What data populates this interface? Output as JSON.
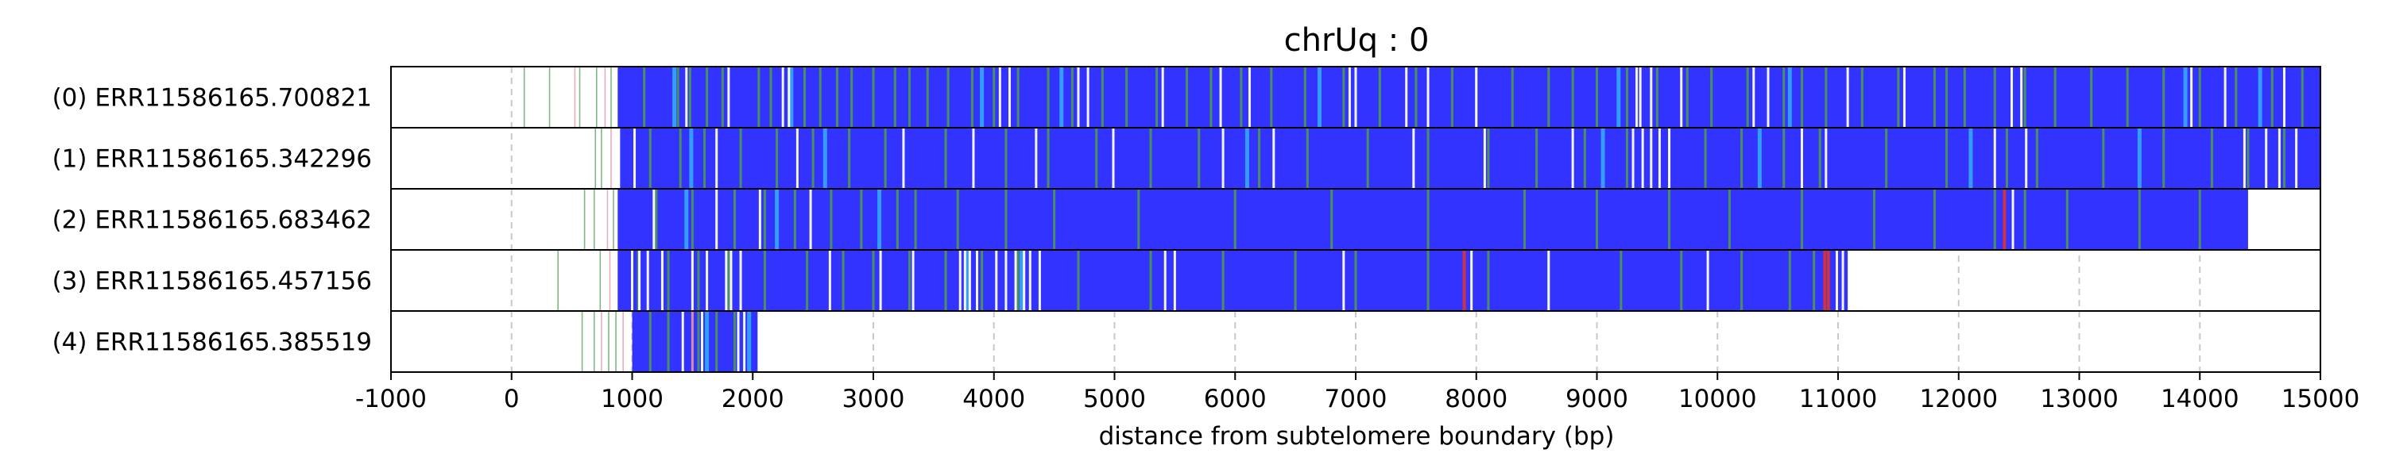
{
  "chart_data": {
    "type": "heatmap",
    "title": "chrUq : 0",
    "xlabel": "distance from subtelomere boundary (bp)",
    "ylabel": "",
    "xlim": [
      -1000,
      15000
    ],
    "xticks": [
      -1000,
      0,
      1000,
      2000,
      3000,
      4000,
      5000,
      6000,
      7000,
      8000,
      9000,
      10000,
      11000,
      12000,
      13000,
      14000,
      15000
    ],
    "xtick_labels": [
      "-1000",
      "0",
      "1000",
      "2000",
      "3000",
      "4000",
      "5000",
      "6000",
      "7000",
      "8000",
      "9000",
      "10000",
      "11000",
      "12000",
      "13000",
      "14000",
      "15000"
    ],
    "grid": "vertical dashed",
    "colors": {
      "repeat": "#3333ff",
      "variant_green": "#4c9a4c",
      "variant_cyan": "#33aaff",
      "variant_red": "#cc3344",
      "variant_pink": "#e08aa0",
      "gap": "#ffffff"
    },
    "rows": [
      {
        "label": "(0) ERR11586165.700821",
        "start": 880,
        "end": 15000,
        "pre_marks": [
          100,
          310,
          520,
          560,
          700,
          770,
          820
        ],
        "green": [
          1100,
          1380,
          1480,
          1620,
          1750,
          2050,
          2150,
          2300,
          2430,
          2560,
          2700,
          2820,
          3000,
          3180,
          3300,
          3450,
          3620,
          3820,
          4000,
          4200,
          4450,
          4650,
          4900,
          5100,
          5350,
          5600,
          5800,
          6050,
          6300,
          6580,
          6900,
          7200,
          7500,
          7800,
          8000,
          8300,
          8600,
          8800,
          9000,
          9250,
          9500,
          9750,
          9950,
          10250,
          10550,
          10700,
          10900,
          11200,
          11500,
          11800,
          11900,
          12050,
          12300,
          12550,
          12800,
          13100,
          13400,
          13700,
          14000,
          14300,
          14600,
          14850
        ],
        "white": [
          1450,
          1800,
          2250,
          2300,
          4050,
          4130,
          4700,
          4780,
          5400,
          5880,
          6120,
          6950,
          7000,
          7420,
          7600,
          8000,
          9330,
          9360,
          9450,
          9700,
          10300,
          10420,
          11080,
          11550,
          12440,
          12520,
          13930,
          14210,
          14700
        ],
        "cyan": [
          1350,
          2320,
          3900,
          4560,
          6700,
          9180,
          10600,
          13880,
          14500
        ]
      },
      {
        "label": "(1) ERR11586165.342296",
        "start": 900,
        "end": 15000,
        "pre_marks": [
          690,
          740,
          820
        ],
        "green": [
          1150,
          1400,
          1600,
          1900,
          2200,
          2500,
          2800,
          3100,
          3600,
          4100,
          4450,
          4850,
          5300,
          5700,
          6200,
          6600,
          7100,
          7600,
          8100,
          8500,
          8900,
          9250,
          9600,
          9900,
          10200,
          10550,
          10850,
          11400,
          11900,
          12400,
          12650,
          13200,
          13700,
          14100,
          14400,
          14700
        ],
        "white": [
          1020,
          1700,
          2370,
          3250,
          3830,
          4350,
          4990,
          5900,
          6320,
          7480,
          8070,
          8800,
          9300,
          9380,
          9450,
          9520,
          9600,
          10700,
          10900,
          12300,
          12560,
          14370,
          14550,
          14660,
          14800
        ],
        "cyan": [
          1490,
          2600,
          6100,
          9050,
          10350,
          12100,
          13500
        ]
      },
      {
        "label": "(2) ERR11586165.683462",
        "start": 880,
        "end": 14400,
        "pre_marks": [
          600,
          680,
          790,
          840
        ],
        "green": [
          1200,
          1500,
          1850,
          2100,
          2350,
          2650,
          2900,
          3200,
          3350,
          3700,
          4100,
          4500,
          5200,
          6000,
          6800,
          7600,
          8400,
          9000,
          9600,
          10100,
          10700,
          11300,
          11800,
          12300,
          12550,
          12900,
          13500,
          14000
        ],
        "white": [
          1180,
          1700,
          2060,
          2480,
          12450
        ],
        "cyan": [
          1450,
          2200,
          3050
        ],
        "red": [
          12380
        ]
      },
      {
        "label": "(3) ERR11586165.457156",
        "start": 880,
        "end": 11080,
        "pre_marks": [
          380,
          730,
          810
        ],
        "green": [
          1050,
          1300,
          1550,
          1800,
          2100,
          2450,
          2750,
          3000,
          3300,
          3600,
          3900,
          4200,
          4700,
          5300,
          5900,
          6500,
          7000,
          7600,
          8100,
          8600,
          9200,
          9700,
          10200,
          10600,
          10800
        ],
        "white": [
          1000,
          1060,
          1130,
          1250,
          1500,
          1620,
          1780,
          1820,
          1900,
          2640,
          3060,
          3330,
          3720,
          3760,
          3800,
          3860,
          4020,
          4100,
          4180,
          4250,
          4300,
          4380,
          5420,
          5500,
          6900,
          7960,
          8600,
          9920,
          10990,
          11040
        ],
        "cyan": [
          3780,
          4230
        ],
        "red": [
          7900,
          10890,
          10920
        ]
      },
      {
        "label": "(4) ERR11586165.385519",
        "start": 1000,
        "end": 2040,
        "pre_marks": [
          580,
          680,
          740,
          800,
          860,
          920
        ],
        "green": [
          1150,
          1300,
          1550,
          1700,
          1850
        ],
        "white": [
          1420,
          1580,
          1880,
          1930
        ],
        "cyan": [
          1620,
          1970
        ],
        "pink": [
          1500
        ]
      }
    ]
  }
}
